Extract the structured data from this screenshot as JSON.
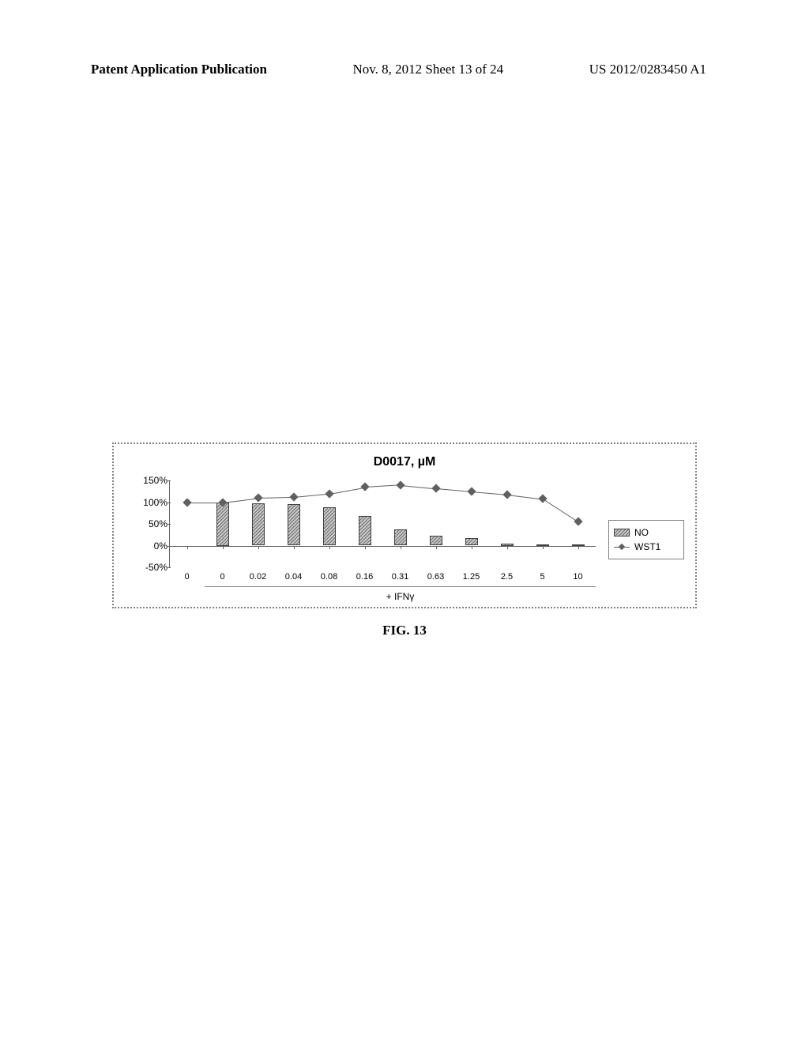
{
  "header": {
    "left": "Patent Application Publication",
    "center": "Nov. 8, 2012  Sheet 13 of 24",
    "right": "US 2012/0283450 A1"
  },
  "chart": {
    "type": "bar+line",
    "title": "D0017, µM",
    "ylim": [
      -50,
      150
    ],
    "ytick_step": 50,
    "y_labels": [
      "150%",
      "100%",
      "50%",
      "0%",
      "-50%"
    ],
    "x_categories": [
      "0",
      "0",
      "0.02",
      "0.04",
      "0.08",
      "0.16",
      "0.31",
      "0.63",
      "1.25",
      "2.5",
      "5",
      "10"
    ],
    "bar_series": {
      "name": "NO",
      "values": [
        0,
        100,
        98,
        96,
        88,
        68,
        38,
        22,
        18,
        5,
        3,
        2
      ]
    },
    "line_series": {
      "name": "WST1",
      "values": [
        100,
        100,
        110,
        112,
        120,
        135,
        140,
        132,
        125,
        118,
        108,
        55
      ]
    },
    "background_color": "#ffffff",
    "grid_color": "#808080",
    "bar_fill": "#a0a0a0",
    "bar_border": "#404040",
    "line_color": "#606060",
    "marker": "diamond",
    "x_range_label": "+ IFNγ",
    "x_range_start_index": 1,
    "x_range_end_index": 11
  },
  "caption": "FIG. 13"
}
